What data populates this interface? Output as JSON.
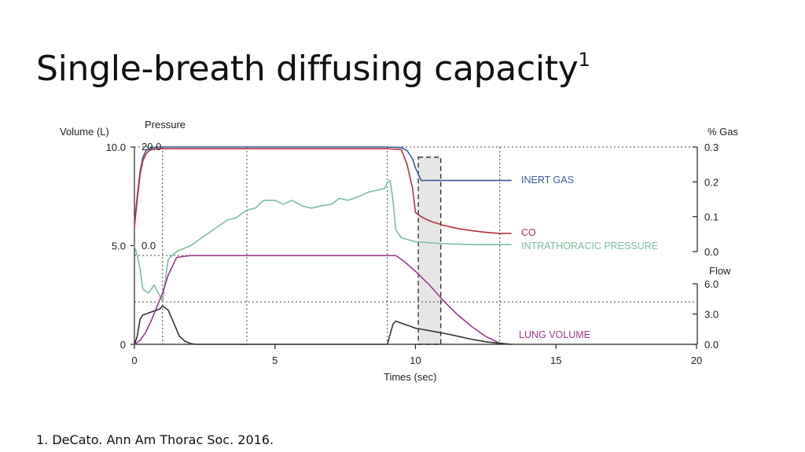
{
  "slide": {
    "title": "Single-breath diffusing capacity",
    "title_superscript": "1",
    "footnote": "1. DeCato. Ann Am Thorac Soc. 2016."
  },
  "chart_data": {
    "type": "line",
    "xlabel": "Times (sec)",
    "xlim": [
      0,
      20
    ],
    "x_ticks": [
      "0",
      "5",
      "10",
      "15",
      "20"
    ],
    "axes": {
      "volume": {
        "label": "Volume (L)",
        "ylim": [
          0,
          10
        ],
        "ticks": [
          "10.0",
          "5.0",
          "0"
        ]
      },
      "pressure": {
        "label": "Pressure",
        "ticks": [
          "20.0",
          "0.0"
        ]
      },
      "gas": {
        "label": "% Gas",
        "ylim": [
          0,
          0.3
        ],
        "ticks": [
          "0.3",
          "0.2",
          "0.1",
          "0.0"
        ]
      },
      "flow": {
        "label": "Flow",
        "ylim": [
          0,
          6
        ],
        "ticks": [
          "6.0",
          "3.0",
          "0.0"
        ]
      }
    },
    "annotations": {
      "shaded_sample_window": [
        10.1,
        10.9
      ],
      "dotted_verticals": [
        1.0,
        4.0,
        9.0,
        13.0
      ]
    },
    "colors": {
      "inert": "#3a5a9c",
      "co": "#b8333a",
      "itp": "#7bbf9c",
      "lung": "#9a3b8a",
      "flow": "#333333",
      "axis": "#222222"
    },
    "series": [
      {
        "name": "INERT GAS",
        "color_key": "inert",
        "axis": "gas",
        "x": [
          0,
          0.1,
          0.2,
          0.3,
          0.4,
          0.5,
          0.6,
          0.8,
          1.0,
          2,
          4,
          6,
          8,
          9,
          9.5,
          9.7,
          9.9,
          10.0,
          10.2,
          10.5,
          11,
          12,
          13.4
        ],
        "y": [
          0.08,
          0.16,
          0.23,
          0.27,
          0.288,
          0.295,
          0.298,
          0.3,
          0.3,
          0.3,
          0.3,
          0.3,
          0.3,
          0.3,
          0.298,
          0.29,
          0.265,
          0.24,
          0.204,
          0.204,
          0.204,
          0.204,
          0.204
        ]
      },
      {
        "name": "CO",
        "color_key": "co",
        "axis": "gas",
        "x": [
          0,
          0.1,
          0.2,
          0.3,
          0.4,
          0.5,
          0.6,
          0.8,
          1.0,
          2,
          4,
          6,
          8,
          9,
          9.5,
          9.7,
          9.9,
          10.0,
          10.2,
          10.5,
          11,
          11.5,
          12,
          12.5,
          13.0,
          13.4
        ],
        "y": [
          0.07,
          0.15,
          0.22,
          0.26,
          0.278,
          0.288,
          0.293,
          0.295,
          0.295,
          0.295,
          0.295,
          0.295,
          0.295,
          0.295,
          0.292,
          0.25,
          0.18,
          0.112,
          0.1,
          0.088,
          0.075,
          0.066,
          0.06,
          0.055,
          0.052,
          0.052
        ]
      },
      {
        "name": "INTRATHORACIC PRESSURE",
        "color_key": "itp",
        "axis": "volume",
        "x": [
          0,
          0.1,
          0.2,
          0.3,
          0.5,
          0.7,
          1.0,
          1.2,
          1.5,
          2.0,
          2.5,
          3.0,
          3.3,
          3.6,
          4.0,
          4.3,
          4.6,
          5.0,
          5.3,
          5.6,
          6.0,
          6.3,
          6.6,
          7.0,
          7.3,
          7.6,
          8.0,
          8.3,
          8.6,
          8.9,
          9.0,
          9.1,
          9.2,
          9.3,
          9.5,
          10,
          11,
          12,
          13.4
        ],
        "y": [
          5.0,
          4.5,
          3.8,
          2.8,
          2.6,
          3.0,
          2.2,
          4.3,
          4.7,
          5.0,
          5.5,
          6.0,
          6.3,
          6.4,
          6.8,
          6.9,
          7.3,
          7.3,
          7.1,
          7.3,
          7.0,
          6.9,
          7.0,
          7.1,
          7.4,
          7.3,
          7.5,
          7.7,
          7.8,
          7.9,
          8.2,
          8.3,
          7.3,
          5.8,
          5.4,
          5.2,
          5.1,
          5.05,
          5.05
        ]
      },
      {
        "name": "LUNG VOLUME",
        "color_key": "lung",
        "axis": "volume",
        "x": [
          0,
          0.2,
          0.4,
          0.6,
          0.8,
          1.0,
          1.2,
          1.5,
          2.0,
          4,
          6,
          8,
          9.0,
          9.3,
          9.6,
          10.0,
          10.5,
          11.0,
          11.5,
          12.0,
          12.5,
          13.0,
          13.4
        ],
        "y": [
          0,
          0.2,
          0.6,
          1.2,
          1.9,
          2.6,
          3.5,
          4.4,
          4.5,
          4.5,
          4.5,
          4.5,
          4.5,
          4.5,
          4.2,
          3.7,
          3.0,
          2.2,
          1.5,
          0.9,
          0.4,
          0.05,
          0
        ]
      },
      {
        "name": "Flow",
        "color_key": "flow",
        "axis": "flow",
        "x": [
          0,
          0.1,
          0.2,
          0.3,
          0.6,
          0.9,
          1.0,
          1.2,
          1.4,
          1.6,
          1.8,
          2.0,
          2.2,
          3,
          5,
          7,
          9.0,
          9.1,
          9.2,
          9.3,
          10,
          11,
          11.5,
          12,
          12.5,
          13.0,
          13.4
        ],
        "y": [
          0,
          0.8,
          2.5,
          2.9,
          3.2,
          3.5,
          3.8,
          3.4,
          2.1,
          0.8,
          0.3,
          0.08,
          0,
          0,
          0,
          0,
          0,
          1.0,
          2.0,
          2.3,
          1.6,
          1.1,
          0.8,
          0.5,
          0.25,
          0.1,
          0
        ]
      }
    ]
  }
}
